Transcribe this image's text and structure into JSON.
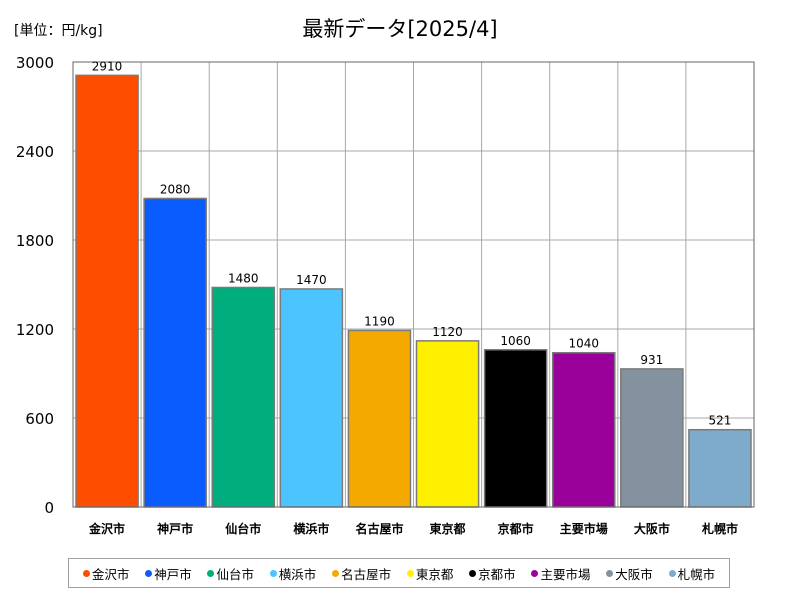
{
  "unit_label": "[単位：円/kg]",
  "chart_data": {
    "type": "bar",
    "title": "最新データ[2025/4]",
    "categories": [
      "金沢市",
      "神戸市",
      "仙台市",
      "横浜市",
      "名古屋市",
      "東京都",
      "京都市",
      "主要市場",
      "大阪市",
      "札幌市"
    ],
    "values": [
      2910,
      2080,
      1480,
      1470,
      1190,
      1120,
      1060,
      1040,
      931,
      521
    ],
    "data_labels": [
      "2910",
      "2080",
      "1480",
      "1470",
      "1190",
      "1120",
      "1060",
      "1040",
      "931",
      "521"
    ],
    "colors": [
      "#ff4d00",
      "#0a5cff",
      "#00ae7d",
      "#4cc4ff",
      "#f4a900",
      "#fff000",
      "#000000",
      "#9a009a",
      "#84929f",
      "#7eabcb"
    ],
    "yticks": [
      "0",
      "600",
      "1200",
      "1800",
      "2400",
      "3000"
    ],
    "ylim": [
      0,
      3000
    ],
    "grid": true,
    "legend_position": "bottom",
    "xlabel": "",
    "ylabel": ""
  }
}
